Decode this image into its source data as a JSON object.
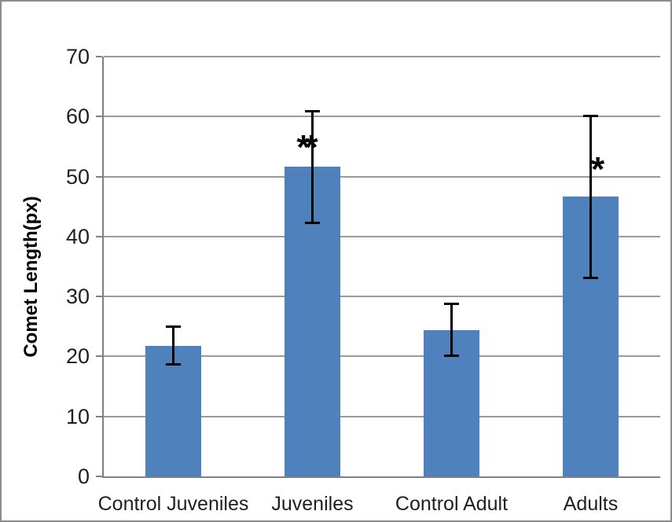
{
  "chart_data": {
    "type": "bar",
    "title": "",
    "xlabel": "",
    "ylabel": "Comet Length(px)",
    "categories": [
      "Control Juveniles",
      "Juveniles",
      "Control Adult",
      "Adults"
    ],
    "values": [
      21.8,
      51.7,
      24.4,
      46.7
    ],
    "error_bars": [
      {
        "low": 18.6,
        "high": 25.1
      },
      {
        "low": 42.2,
        "high": 61.0
      },
      {
        "low": 20.1,
        "high": 28.8
      },
      {
        "low": 33.0,
        "high": 60.2
      }
    ],
    "annotations": [
      {
        "text": "**",
        "category_index": 1,
        "y_value": 56.0,
        "x_offset": -10
      },
      {
        "text": "*",
        "category_index": 3,
        "y_value": 52.3,
        "x_offset": 9
      }
    ],
    "ylim": [
      0,
      70
    ],
    "ytick_step": 10,
    "yticks": [
      0,
      10,
      20,
      30,
      40,
      50,
      60,
      70
    ],
    "grid": true,
    "legend": "none",
    "colors": {
      "bar": "#4F81BD",
      "gridline": "#9A9A9A",
      "axis": "#808080",
      "error_bar": "#000000",
      "text": "#1F1F1F",
      "border": "#8C8C8C",
      "background": "#FFFFFF"
    }
  }
}
